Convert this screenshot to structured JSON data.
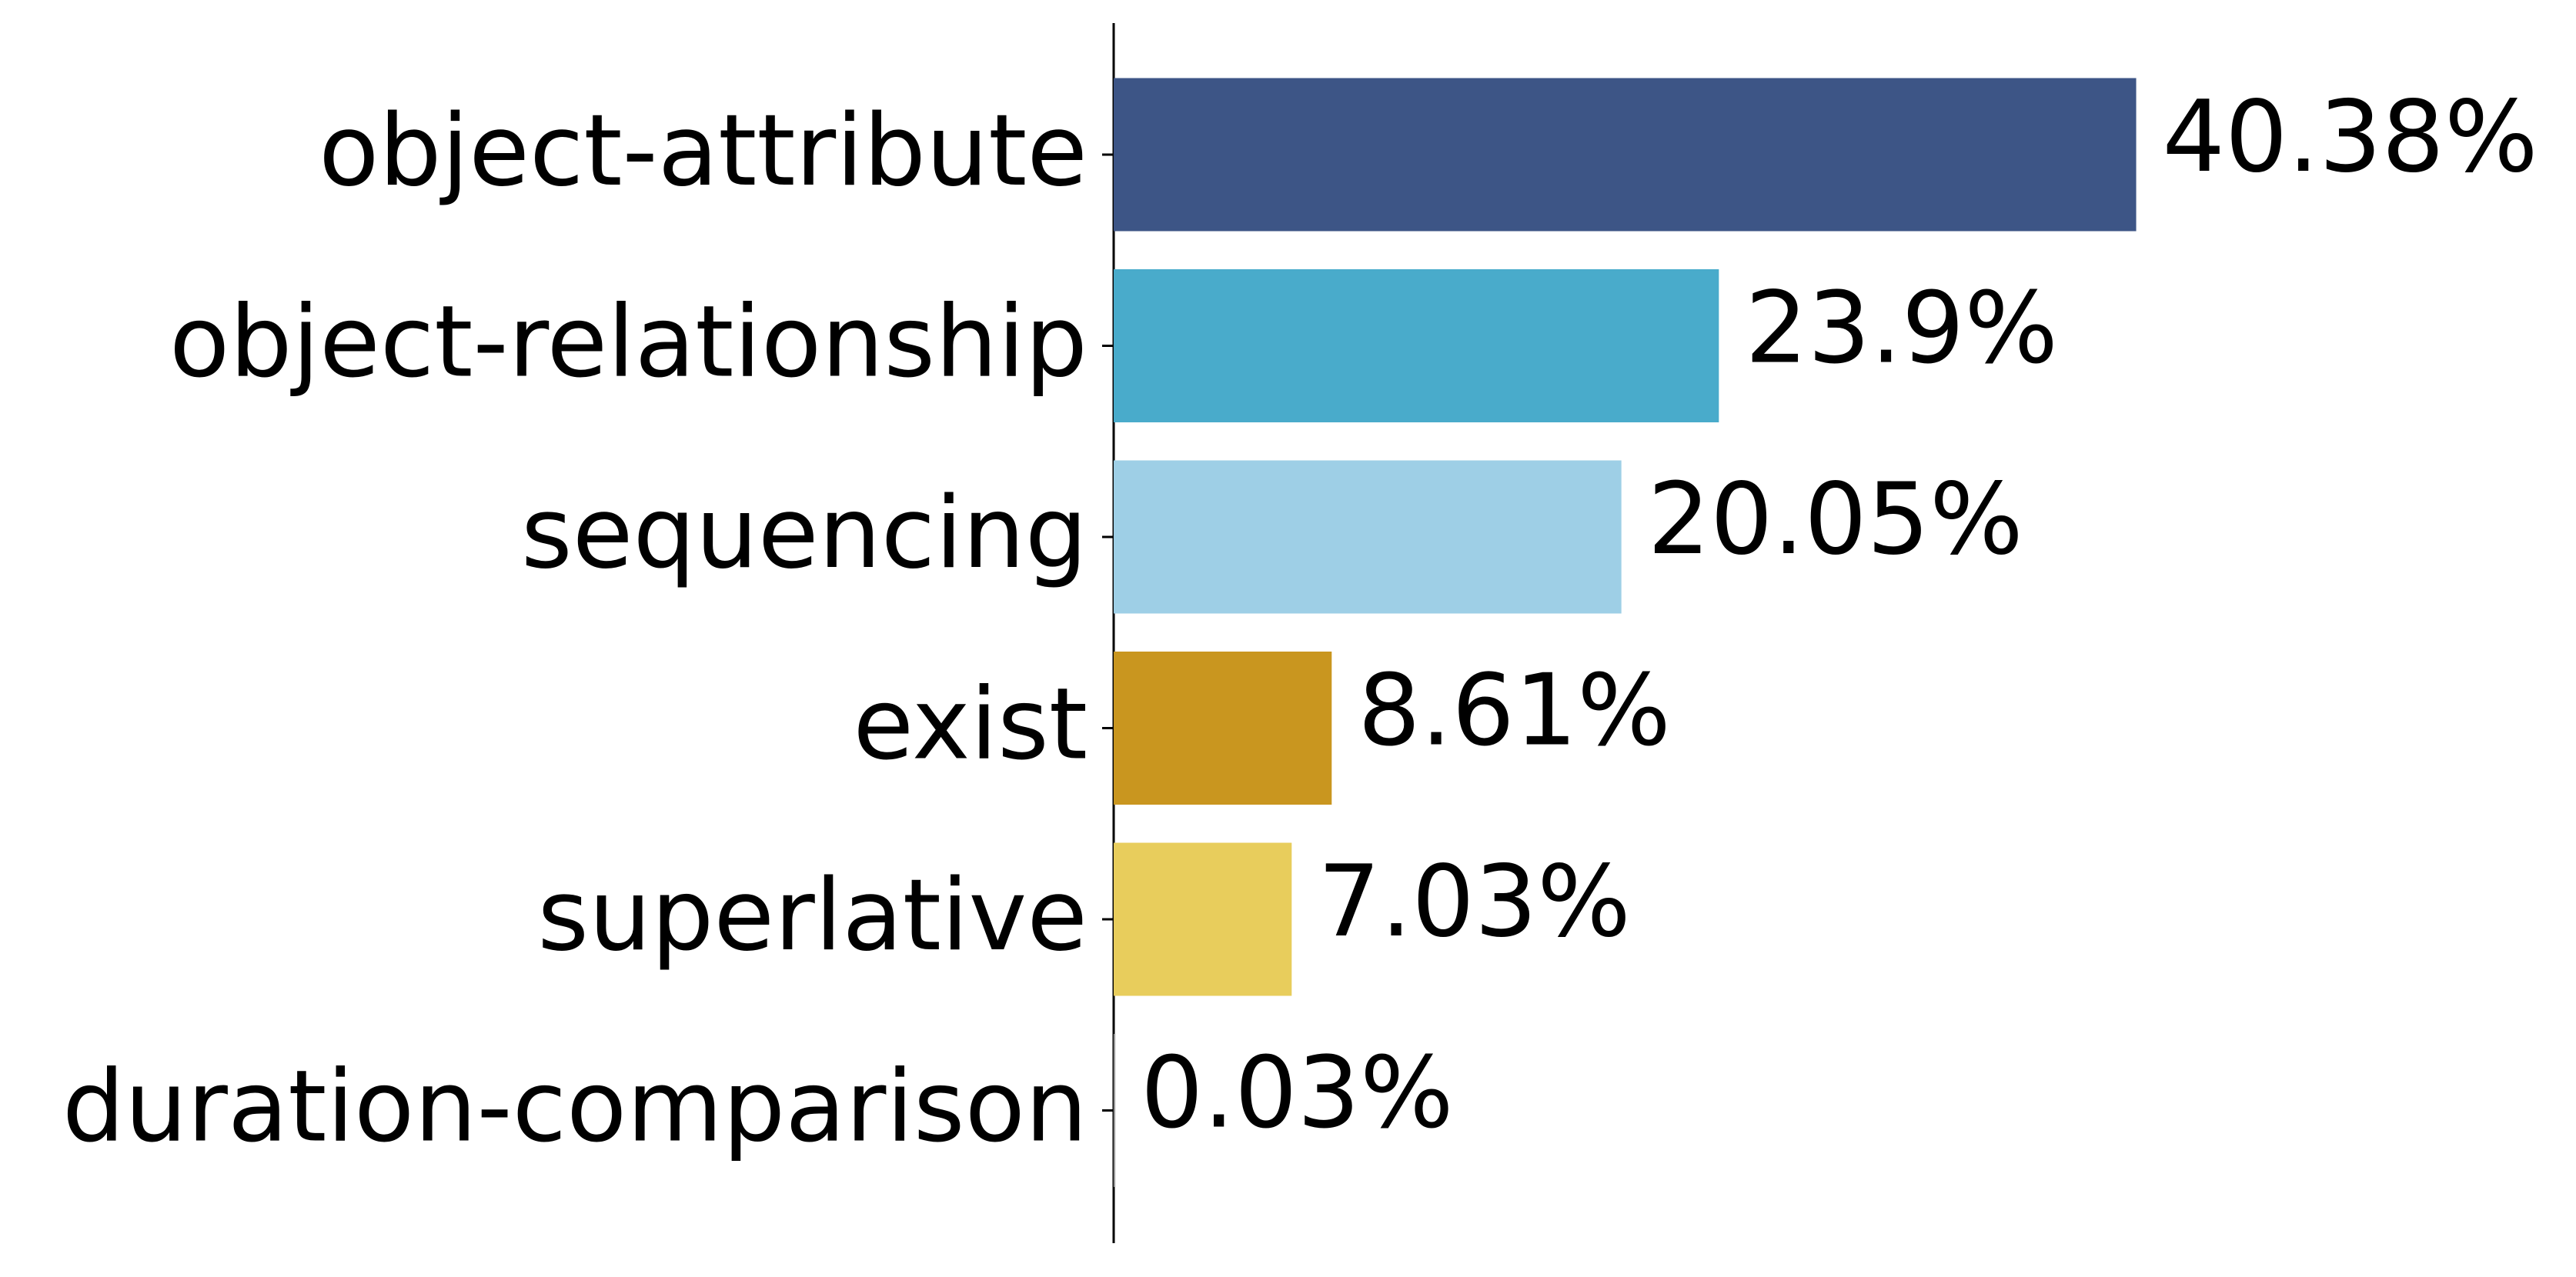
{
  "chart_data": {
    "type": "barh",
    "categories": [
      "object-attribute",
      "object-relationship",
      "sequencing",
      "exist",
      "superlative",
      "duration-comparison"
    ],
    "values": [
      40.38,
      23.9,
      20.05,
      8.61,
      7.03,
      0.03
    ],
    "value_labels": [
      "40.38%",
      "23.9%",
      "20.05%",
      "8.61%",
      "7.03%",
      "0.03%"
    ],
    "colors": [
      "#3d5586",
      "#49abcb",
      "#9ecfe6",
      "#c9961f",
      "#e8cd5c",
      "#b0b0b0"
    ],
    "xlim": [
      0,
      42.4
    ]
  }
}
